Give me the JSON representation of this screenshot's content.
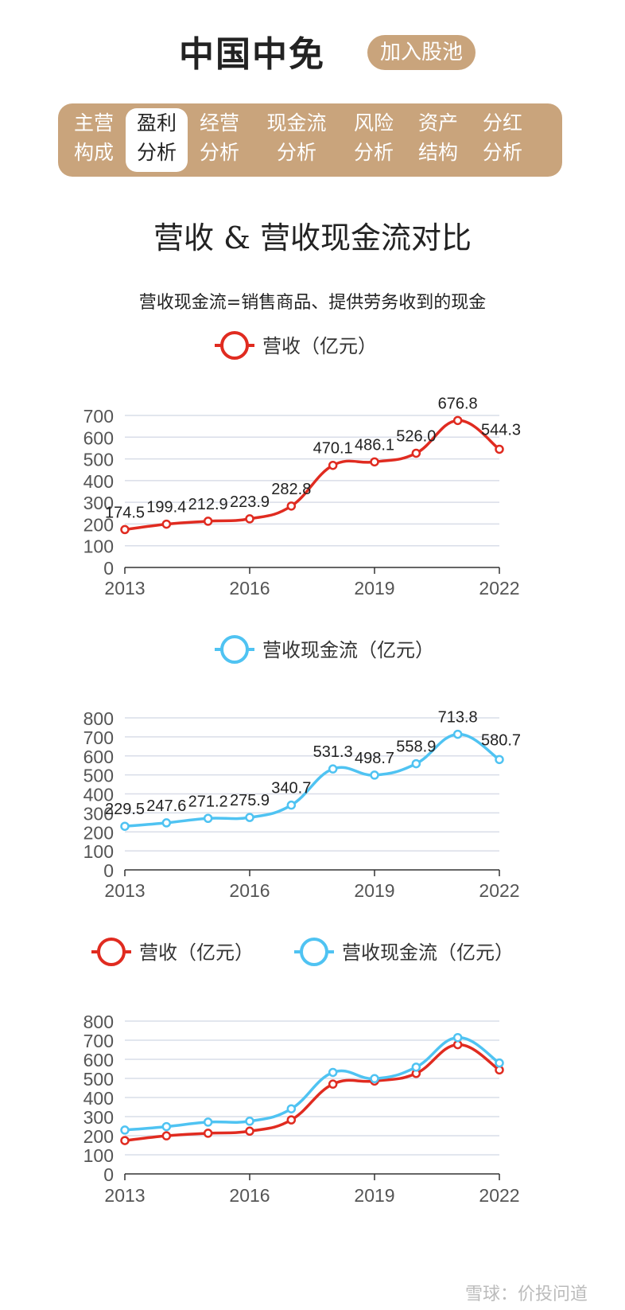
{
  "header": {
    "title": "中国中免",
    "add_button": "加入股池"
  },
  "tabs": [
    {
      "line1": "主营",
      "line2": "构成",
      "active": false
    },
    {
      "line1": "盈利",
      "line2": "分析",
      "active": true
    },
    {
      "line1": "经营",
      "line2": "分析",
      "active": false
    },
    {
      "line1": "现金流",
      "line2": "分析",
      "active": false
    },
    {
      "line1": "风险",
      "line2": "分析",
      "active": false
    },
    {
      "line1": "资产",
      "line2": "结构",
      "active": false
    },
    {
      "line1": "分红",
      "line2": "分析",
      "active": false
    }
  ],
  "section": {
    "title": "营收 & 营收现金流对比",
    "subtitle": "营收现金流=销售商品、提供劳务收到的现金"
  },
  "colors": {
    "accent": "#c9a47c",
    "revenue": "#e02b20",
    "cashflow": "#4fc3f2"
  },
  "watermark": "雪球：价投问道",
  "chart_data": [
    {
      "type": "line",
      "x": [
        2013,
        2014,
        2015,
        2016,
        2017,
        2018,
        2019,
        2020,
        2021,
        2022
      ],
      "x_tick_labels": [
        "2013",
        "2016",
        "2019",
        "2022"
      ],
      "ylim": [
        0,
        700
      ],
      "y_ticks": [
        0,
        100,
        200,
        300,
        400,
        500,
        600,
        700
      ],
      "series": [
        {
          "name": "营收（亿元）",
          "color": "#e02b20",
          "values": [
            174.5,
            199.4,
            212.9,
            223.9,
            282.8,
            470.1,
            486.1,
            526.0,
            676.8,
            544.3
          ],
          "labels": [
            "174.5",
            "199.4",
            "212.9",
            "223.9",
            "282.8",
            "470.1",
            "486.1",
            "526.0",
            "676.8",
            "544.3"
          ]
        }
      ],
      "show_data_labels": true
    },
    {
      "type": "line",
      "x": [
        2013,
        2014,
        2015,
        2016,
        2017,
        2018,
        2019,
        2020,
        2021,
        2022
      ],
      "x_tick_labels": [
        "2013",
        "2016",
        "2019",
        "2022"
      ],
      "ylim": [
        0,
        800
      ],
      "y_ticks": [
        0,
        100,
        200,
        300,
        400,
        500,
        600,
        700,
        800
      ],
      "series": [
        {
          "name": "营收现金流（亿元）",
          "color": "#4fc3f2",
          "values": [
            229.5,
            247.6,
            271.2,
            275.9,
            340.7,
            531.3,
            498.7,
            558.9,
            713.8,
            580.7
          ],
          "labels": [
            "229.5",
            "247.6",
            "271.2",
            "275.9",
            "340.7",
            "531.3",
            "498.7",
            "558.9",
            "713.8",
            "580.7"
          ]
        }
      ],
      "show_data_labels": true
    },
    {
      "type": "line",
      "x": [
        2013,
        2014,
        2015,
        2016,
        2017,
        2018,
        2019,
        2020,
        2021,
        2022
      ],
      "x_tick_labels": [
        "2013",
        "2016",
        "2019",
        "2022"
      ],
      "ylim": [
        0,
        800
      ],
      "y_ticks": [
        0,
        100,
        200,
        300,
        400,
        500,
        600,
        700,
        800
      ],
      "series": [
        {
          "name": "营收（亿元）",
          "color": "#e02b20",
          "values": [
            174.5,
            199.4,
            212.9,
            223.9,
            282.8,
            470.1,
            486.1,
            526.0,
            676.8,
            544.3
          ]
        },
        {
          "name": "营收现金流（亿元）",
          "color": "#4fc3f2",
          "values": [
            229.5,
            247.6,
            271.2,
            275.9,
            340.7,
            531.3,
            498.7,
            558.9,
            713.8,
            580.7
          ]
        }
      ],
      "show_data_labels": false
    }
  ]
}
